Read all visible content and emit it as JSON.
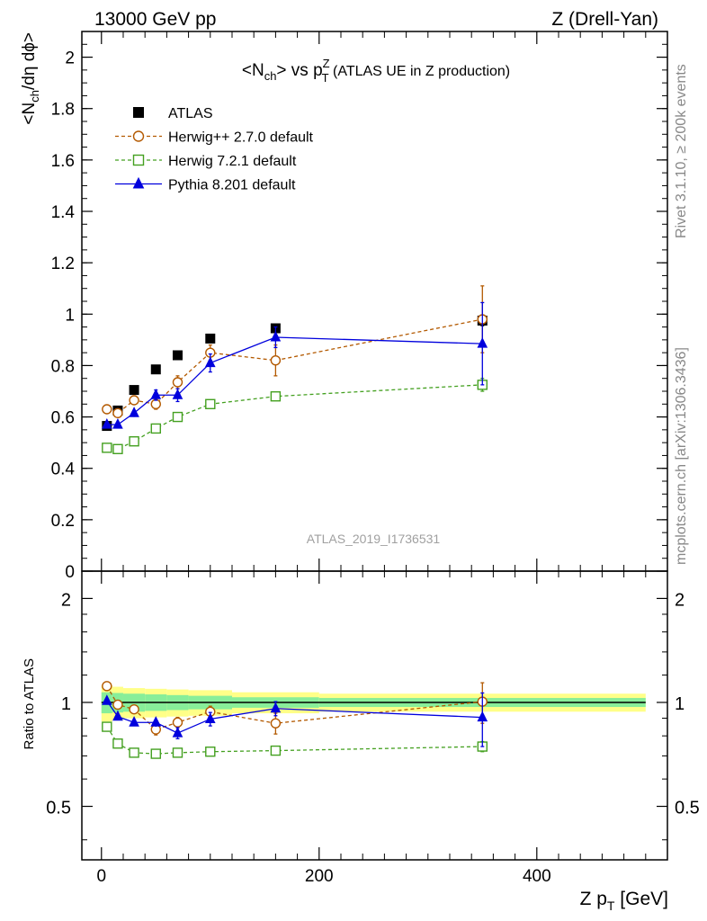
{
  "header": {
    "left": "13000 GeV pp",
    "right": "Z (Drell-Yan)"
  },
  "side_labels": {
    "rivet": "Rivet 3.1.10, ≥ 200k events",
    "mcplots": "mcplots.cern.ch [arXiv:1306.3436]"
  },
  "chart_data": [
    {
      "type": "scatter",
      "title": "<Nch> vs pTZ (ATLAS UE in Z production)",
      "title_parts": {
        "n_open": "<N",
        "n_sub": "ch",
        "vs": "> vs p",
        "p_sup": "Z",
        "p_sub": "T",
        "rest": " (ATLAS UE in Z production)"
      },
      "ylabel": "<Nch/dη dϕ>",
      "ylabel_parts": {
        "a": "<N",
        "sub": "ch",
        "b": "/dη dϕ>"
      },
      "xlim": [
        -18,
        520
      ],
      "ylim": [
        0,
        2.1
      ],
      "yticks": [
        0,
        0.2,
        0.4,
        0.6,
        0.8,
        1,
        1.2,
        1.4,
        1.6,
        1.8,
        2
      ],
      "ytick_labels": [
        "0",
        "0.2",
        "0.4",
        "0.6",
        "0.8",
        "1",
        "1.2",
        "1.4",
        "1.6",
        "1.8",
        "2"
      ],
      "watermark": "ATLAS_2019_I1736531",
      "legend_position": "top-left",
      "x": [
        5,
        15,
        30,
        50,
        70,
        100,
        160,
        350
      ],
      "series": [
        {
          "name": "ATLAS",
          "color": "#000000",
          "marker": "filled-square",
          "values": [
            0.565,
            0.625,
            0.705,
            0.785,
            0.84,
            0.905,
            0.945,
            0.975
          ],
          "errors": [
            0.005,
            0.005,
            0.005,
            0.006,
            0.007,
            0.008,
            0.01,
            0.02
          ]
        },
        {
          "name": "Herwig++ 2.7.0 default",
          "color": "#b35900",
          "marker": "open-circle",
          "dash": true,
          "values": [
            0.63,
            0.615,
            0.665,
            0.65,
            0.735,
            0.85,
            0.82,
            0.98
          ],
          "errors": [
            0.01,
            0.01,
            0.015,
            0.02,
            0.025,
            0.03,
            0.06,
            0.13
          ]
        },
        {
          "name": "Herwig 7.2.1 default",
          "color": "#44a020",
          "marker": "open-square",
          "dash": true,
          "values": [
            0.48,
            0.475,
            0.505,
            0.555,
            0.6,
            0.65,
            0.68,
            0.725
          ],
          "errors": [
            0.005,
            0.005,
            0.005,
            0.006,
            0.006,
            0.008,
            0.01,
            0.025
          ]
        },
        {
          "name": "Pythia 8.201 default",
          "color": "#0000dd",
          "marker": "filled-triangle",
          "dash": false,
          "values": [
            0.57,
            0.57,
            0.615,
            0.685,
            0.685,
            0.81,
            0.91,
            0.885
          ],
          "errors": [
            0.01,
            0.01,
            0.015,
            0.02,
            0.025,
            0.035,
            0.04,
            0.16
          ]
        }
      ]
    },
    {
      "type": "scatter",
      "ylabel": "Ratio to ATLAS",
      "xlabel": "Z pT [GeV]",
      "xlabel_parts": {
        "a": "Z p",
        "sub": "T",
        "b": " [GeV]"
      },
      "xlim": [
        -18,
        520
      ],
      "ylim": [
        0.35,
        2.4
      ],
      "yscale": "log",
      "yticks": [
        0.5,
        1,
        2
      ],
      "ytick_labels": [
        "0.5",
        "1",
        "2"
      ],
      "xticks": [
        0,
        200,
        400
      ],
      "xtick_labels": [
        "0",
        "200",
        "400"
      ],
      "reference": 1,
      "band_bins": [
        [
          0,
          10
        ],
        [
          10,
          20
        ],
        [
          20,
          40
        ],
        [
          40,
          60
        ],
        [
          60,
          80
        ],
        [
          80,
          120
        ],
        [
          120,
          200
        ],
        [
          200,
          500
        ]
      ],
      "band_outer": [
        0.12,
        0.11,
        0.1,
        0.095,
        0.09,
        0.085,
        0.07,
        0.06
      ],
      "band_inner": [
        0.07,
        0.065,
        0.06,
        0.055,
        0.05,
        0.045,
        0.035,
        0.03
      ],
      "band_colors": {
        "outer": "#ffff88",
        "inner": "#88ee99"
      },
      "x": [
        5,
        15,
        30,
        50,
        70,
        100,
        160,
        350
      ],
      "series": [
        {
          "name": "Herwig++ 2.7.0 default",
          "color": "#b35900",
          "marker": "open-circle",
          "dash": true,
          "values": [
            1.115,
            0.985,
            0.955,
            0.835,
            0.875,
            0.94,
            0.87,
            1.005
          ],
          "errors": [
            0.015,
            0.02,
            0.02,
            0.03,
            0.03,
            0.035,
            0.06,
            0.135
          ]
        },
        {
          "name": "Herwig 7.2.1 default",
          "color": "#44a020",
          "marker": "open-square",
          "dash": true,
          "values": [
            0.85,
            0.76,
            0.715,
            0.71,
            0.715,
            0.72,
            0.725,
            0.745
          ],
          "errors": [
            0.01,
            0.01,
            0.008,
            0.008,
            0.008,
            0.01,
            0.01,
            0.025
          ]
        },
        {
          "name": "Pythia 8.201 default",
          "color": "#0000dd",
          "marker": "filled-triangle",
          "dash": false,
          "values": [
            1.01,
            0.91,
            0.875,
            0.875,
            0.815,
            0.895,
            0.96,
            0.905
          ],
          "errors": [
            0.015,
            0.015,
            0.02,
            0.025,
            0.03,
            0.04,
            0.045,
            0.16
          ]
        }
      ]
    }
  ]
}
